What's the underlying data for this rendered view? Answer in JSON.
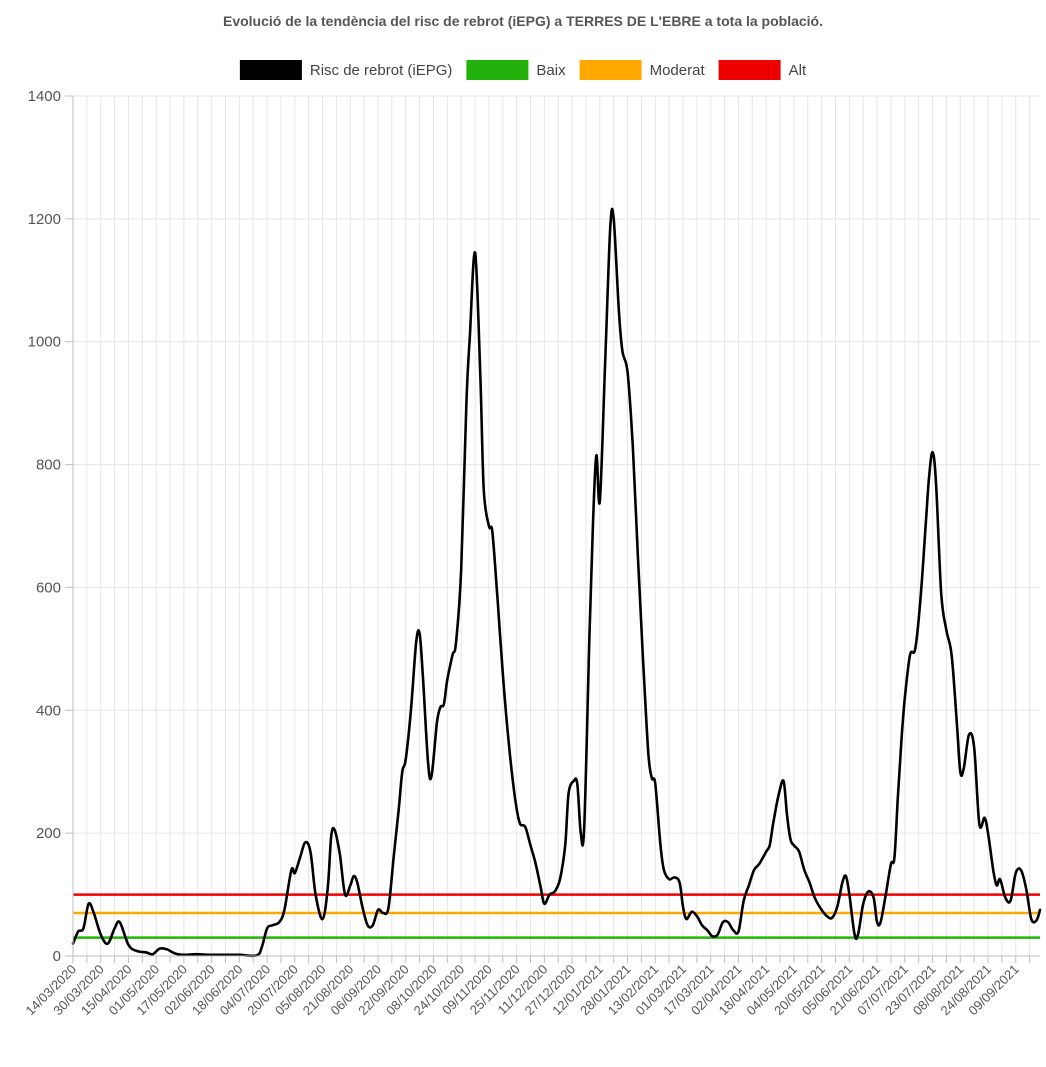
{
  "chart_data": {
    "type": "line",
    "title": "Evolució de la tendència del risc de rebrot (iEPG) a TERRES DE L'EBRE a tota la població.",
    "xlabel": "",
    "ylabel": "",
    "ylim": [
      0,
      1400
    ],
    "yticks": [
      0,
      200,
      400,
      600,
      800,
      1000,
      1200,
      1400
    ],
    "x_range": [
      "14/03/2020",
      "23/09/2021"
    ],
    "x_ticks": [
      "14/03/2020",
      "30/03/2020",
      "15/04/2020",
      "01/05/2020",
      "17/05/2020",
      "02/06/2020",
      "18/06/2020",
      "04/07/2020",
      "20/07/2020",
      "05/08/2020",
      "21/08/2020",
      "06/09/2020",
      "22/09/2020",
      "08/10/2020",
      "24/10/2020",
      "09/11/2020",
      "25/11/2020",
      "11/12/2020",
      "27/12/2020",
      "12/01/2021",
      "28/01/2021",
      "13/02/2021",
      "01/03/2021",
      "17/03/2021",
      "02/04/2021",
      "18/04/2021",
      "04/05/2021",
      "20/05/2021",
      "05/06/2021",
      "21/06/2021",
      "07/07/2021",
      "23/07/2021",
      "08/08/2021",
      "24/08/2021",
      "09/09/2021"
    ],
    "grid": true,
    "legend_position": "top",
    "legend": [
      {
        "name": "Risc de rebrot (iEPG)",
        "color": "#000000"
      },
      {
        "name": "Baix",
        "color": "#22b20b"
      },
      {
        "name": "Moderat",
        "color": "#ffa800"
      },
      {
        "name": "Alt",
        "color": "#ef0000"
      }
    ],
    "thresholds": [
      {
        "name": "Baix",
        "value": 30,
        "color": "#22b20b"
      },
      {
        "name": "Moderat",
        "value": 70,
        "color": "#ffa800"
      },
      {
        "name": "Alt",
        "value": 100,
        "color": "#ef0000"
      }
    ],
    "series": [
      {
        "name": "Risc de rebrot (iEPG)",
        "color": "#000000",
        "points": [
          [
            "14/03/2020",
            20
          ],
          [
            "17/03/2020",
            40
          ],
          [
            "20/03/2020",
            45
          ],
          [
            "23/03/2020",
            85
          ],
          [
            "26/03/2020",
            70
          ],
          [
            "30/03/2020",
            35
          ],
          [
            "03/04/2020",
            20
          ],
          [
            "07/04/2020",
            45
          ],
          [
            "10/04/2020",
            55
          ],
          [
            "15/04/2020",
            18
          ],
          [
            "20/04/2020",
            8
          ],
          [
            "25/04/2020",
            6
          ],
          [
            "29/04/2020",
            3
          ],
          [
            "03/05/2020",
            12
          ],
          [
            "07/05/2020",
            11
          ],
          [
            "12/05/2020",
            4
          ],
          [
            "17/05/2020",
            2
          ],
          [
            "24/05/2020",
            3
          ],
          [
            "02/06/2020",
            2
          ],
          [
            "12/06/2020",
            2
          ],
          [
            "18/06/2020",
            2
          ],
          [
            "28/06/2020",
            1
          ],
          [
            "01/07/2020",
            15
          ],
          [
            "04/07/2020",
            45
          ],
          [
            "07/07/2020",
            50
          ],
          [
            "11/07/2020",
            55
          ],
          [
            "14/07/2020",
            75
          ],
          [
            "18/07/2020",
            140
          ],
          [
            "20/07/2020",
            135
          ],
          [
            "23/07/2020",
            160
          ],
          [
            "26/07/2020",
            185
          ],
          [
            "29/07/2020",
            170
          ],
          [
            "01/08/2020",
            100
          ],
          [
            "05/08/2020",
            60
          ],
          [
            "08/08/2020",
            110
          ],
          [
            "10/08/2020",
            195
          ],
          [
            "12/08/2020",
            205
          ],
          [
            "15/08/2020",
            165
          ],
          [
            "18/08/2020",
            100
          ],
          [
            "21/08/2020",
            115
          ],
          [
            "23/08/2020",
            130
          ],
          [
            "25/08/2020",
            120
          ],
          [
            "28/08/2020",
            80
          ],
          [
            "31/08/2020",
            50
          ],
          [
            "03/09/2020",
            50
          ],
          [
            "06/09/2020",
            75
          ],
          [
            "09/09/2020",
            70
          ],
          [
            "12/09/2020",
            78
          ],
          [
            "15/09/2020",
            160
          ],
          [
            "18/09/2020",
            240
          ],
          [
            "20/09/2020",
            300
          ],
          [
            "22/09/2020",
            320
          ],
          [
            "25/09/2020",
            400
          ],
          [
            "28/09/2020",
            510
          ],
          [
            "30/09/2020",
            525
          ],
          [
            "02/10/2020",
            450
          ],
          [
            "05/10/2020",
            310
          ],
          [
            "07/10/2020",
            295
          ],
          [
            "10/10/2020",
            380
          ],
          [
            "12/10/2020",
            405
          ],
          [
            "14/10/2020",
            410
          ],
          [
            "16/10/2020",
            450
          ],
          [
            "19/10/2020",
            490
          ],
          [
            "21/10/2020",
            510
          ],
          [
            "24/10/2020",
            630
          ],
          [
            "27/10/2020",
            900
          ],
          [
            "29/10/2020",
            1010
          ],
          [
            "01/11/2020",
            1145
          ],
          [
            "04/11/2020",
            950
          ],
          [
            "06/11/2020",
            760
          ],
          [
            "09/11/2020",
            700
          ],
          [
            "11/11/2020",
            690
          ],
          [
            "14/11/2020",
            580
          ],
          [
            "17/11/2020",
            460
          ],
          [
            "20/11/2020",
            360
          ],
          [
            "23/11/2020",
            280
          ],
          [
            "25/11/2020",
            240
          ],
          [
            "27/11/2020",
            215
          ],
          [
            "30/11/2020",
            210
          ],
          [
            "03/12/2020",
            180
          ],
          [
            "06/12/2020",
            150
          ],
          [
            "09/12/2020",
            110
          ],
          [
            "11/12/2020",
            85
          ],
          [
            "14/12/2020",
            100
          ],
          [
            "17/12/2020",
            105
          ],
          [
            "20/12/2020",
            125
          ],
          [
            "23/12/2020",
            180
          ],
          [
            "25/12/2020",
            265
          ],
          [
            "28/12/2020",
            285
          ],
          [
            "30/12/2020",
            280
          ],
          [
            "01/01/2021",
            200
          ],
          [
            "03/01/2021",
            210
          ],
          [
            "06/01/2021",
            520
          ],
          [
            "08/01/2021",
            700
          ],
          [
            "10/01/2021",
            815
          ],
          [
            "12/01/2021",
            740
          ],
          [
            "15/01/2021",
            960
          ],
          [
            "18/01/2021",
            1185
          ],
          [
            "20/01/2021",
            1200
          ],
          [
            "23/01/2021",
            1050
          ],
          [
            "25/01/2021",
            985
          ],
          [
            "28/01/2021",
            950
          ],
          [
            "31/01/2021",
            830
          ],
          [
            "03/02/2021",
            650
          ],
          [
            "06/02/2021",
            480
          ],
          [
            "09/02/2021",
            330
          ],
          [
            "11/02/2021",
            290
          ],
          [
            "13/02/2021",
            280
          ],
          [
            "16/02/2021",
            180
          ],
          [
            "18/02/2021",
            140
          ],
          [
            "21/02/2021",
            125
          ],
          [
            "24/02/2021",
            128
          ],
          [
            "27/02/2021",
            120
          ],
          [
            "01/03/2021",
            80
          ],
          [
            "03/03/2021",
            60
          ],
          [
            "06/03/2021",
            72
          ],
          [
            "09/03/2021",
            65
          ],
          [
            "12/03/2021",
            50
          ],
          [
            "15/03/2021",
            42
          ],
          [
            "18/03/2021",
            32
          ],
          [
            "21/03/2021",
            35
          ],
          [
            "24/03/2021",
            55
          ],
          [
            "27/03/2021",
            55
          ],
          [
            "30/03/2021",
            42
          ],
          [
            "02/04/2021",
            40
          ],
          [
            "05/04/2021",
            90
          ],
          [
            "08/04/2021",
            115
          ],
          [
            "11/04/2021",
            140
          ],
          [
            "14/04/2021",
            150
          ],
          [
            "18/04/2021",
            170
          ],
          [
            "20/04/2021",
            180
          ],
          [
            "22/04/2021",
            215
          ],
          [
            "25/04/2021",
            260
          ],
          [
            "28/04/2021",
            285
          ],
          [
            "30/04/2021",
            230
          ],
          [
            "02/05/2021",
            190
          ],
          [
            "04/05/2021",
            180
          ],
          [
            "07/05/2021",
            170
          ],
          [
            "10/05/2021",
            140
          ],
          [
            "13/05/2021",
            120
          ],
          [
            "16/05/2021",
            95
          ],
          [
            "20/05/2021",
            75
          ],
          [
            "23/05/2021",
            65
          ],
          [
            "26/05/2021",
            62
          ],
          [
            "29/05/2021",
            80
          ],
          [
            "01/06/2021",
            120
          ],
          [
            "03/06/2021",
            130
          ],
          [
            "05/06/2021",
            100
          ],
          [
            "08/06/2021",
            35
          ],
          [
            "10/06/2021",
            35
          ],
          [
            "13/06/2021",
            85
          ],
          [
            "16/06/2021",
            105
          ],
          [
            "19/06/2021",
            95
          ],
          [
            "21/06/2021",
            55
          ],
          [
            "23/06/2021",
            55
          ],
          [
            "26/06/2021",
            100
          ],
          [
            "29/06/2021",
            150
          ],
          [
            "01/07/2021",
            160
          ],
          [
            "03/07/2021",
            260
          ],
          [
            "05/07/2021",
            350
          ],
          [
            "07/07/2021",
            420
          ],
          [
            "10/07/2021",
            490
          ],
          [
            "13/07/2021",
            500
          ],
          [
            "16/07/2021",
            580
          ],
          [
            "19/07/2021",
            700
          ],
          [
            "21/07/2021",
            780
          ],
          [
            "23/07/2021",
            820
          ],
          [
            "25/07/2021",
            770
          ],
          [
            "28/07/2021",
            590
          ],
          [
            "31/07/2021",
            530
          ],
          [
            "03/08/2021",
            490
          ],
          [
            "06/08/2021",
            380
          ],
          [
            "08/08/2021",
            300
          ],
          [
            "10/08/2021",
            305
          ],
          [
            "13/08/2021",
            360
          ],
          [
            "16/08/2021",
            340
          ],
          [
            "19/08/2021",
            215
          ],
          [
            "22/08/2021",
            225
          ],
          [
            "24/08/2021",
            200
          ],
          [
            "27/08/2021",
            140
          ],
          [
            "29/08/2021",
            115
          ],
          [
            "31/08/2021",
            125
          ],
          [
            "03/09/2021",
            95
          ],
          [
            "06/09/2021",
            90
          ],
          [
            "09/09/2021",
            135
          ],
          [
            "12/09/2021",
            140
          ],
          [
            "15/09/2021",
            110
          ],
          [
            "18/09/2021",
            60
          ],
          [
            "21/09/2021",
            58
          ],
          [
            "23/09/2021",
            75
          ]
        ]
      }
    ]
  }
}
